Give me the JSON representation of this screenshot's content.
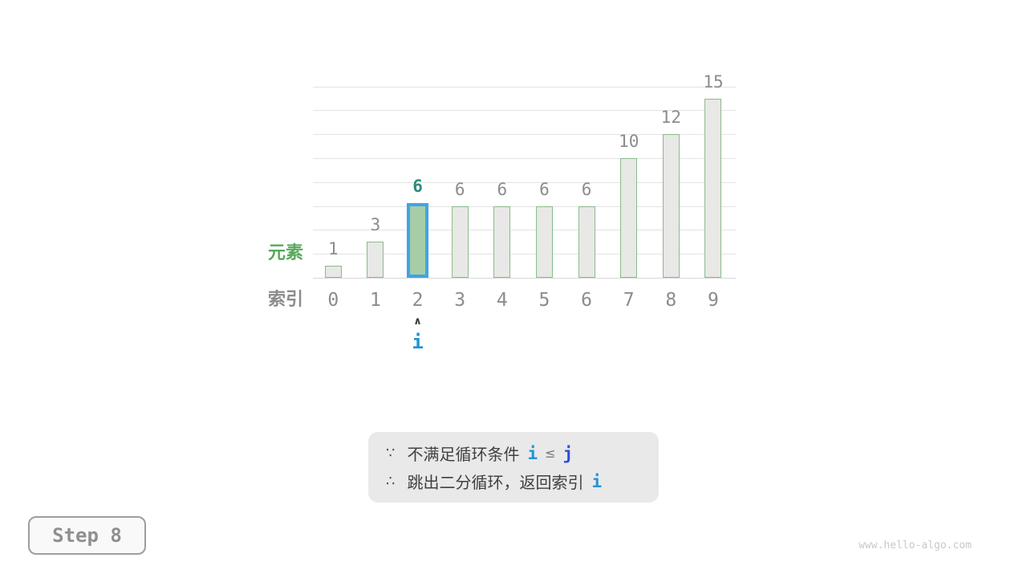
{
  "page": {
    "watermark": "www.hello-algo.com"
  },
  "step_badge": {
    "label": "Step 8"
  },
  "labels": {
    "element": "元素",
    "index": "索引"
  },
  "pointer": {
    "arrow": "∧",
    "name": "i",
    "at_index": 2
  },
  "note": {
    "because_symbol": "∵",
    "line1_text": "不满足循环条件",
    "line1_i": "i",
    "line1_op": "≤",
    "line1_j": "j",
    "therefore_symbol": "∴",
    "line2_text": "跳出二分循环，返回索引",
    "line2_i": "i"
  },
  "chart_data": {
    "type": "bar",
    "categories": [
      "0",
      "1",
      "2",
      "3",
      "4",
      "5",
      "6",
      "7",
      "8",
      "9"
    ],
    "values": [
      1,
      3,
      6,
      6,
      6,
      6,
      6,
      10,
      12,
      15
    ],
    "value_labels": [
      "1",
      "3",
      "6",
      "6",
      "6",
      "6",
      "6",
      "10",
      "12",
      "15"
    ],
    "highlighted_index": 2,
    "xlabel": "索引",
    "ylabel": "元素",
    "ylim": [
      0,
      16
    ],
    "gridline_step": 2,
    "grid": true,
    "legend": false
  },
  "colors": {
    "bar_fill": "#e8e8e6",
    "bar_border": "#8abc8a",
    "highlight_fill": "#a7cda6",
    "highlight_border": "#3fa4e6",
    "highlight_value_label": "#2e8b7c",
    "value_label": "#8c8c8c",
    "index_label": "#8c8c8c",
    "element_label": "#58a95c",
    "pointer_i": "#2193d8",
    "note_i": "#2193d8",
    "note_j": "#2b50dc",
    "note_bg": "#e9e9e9",
    "note_text": "#404040",
    "gridline": "#e3e3e3",
    "baseline": "#d7d7d7"
  }
}
